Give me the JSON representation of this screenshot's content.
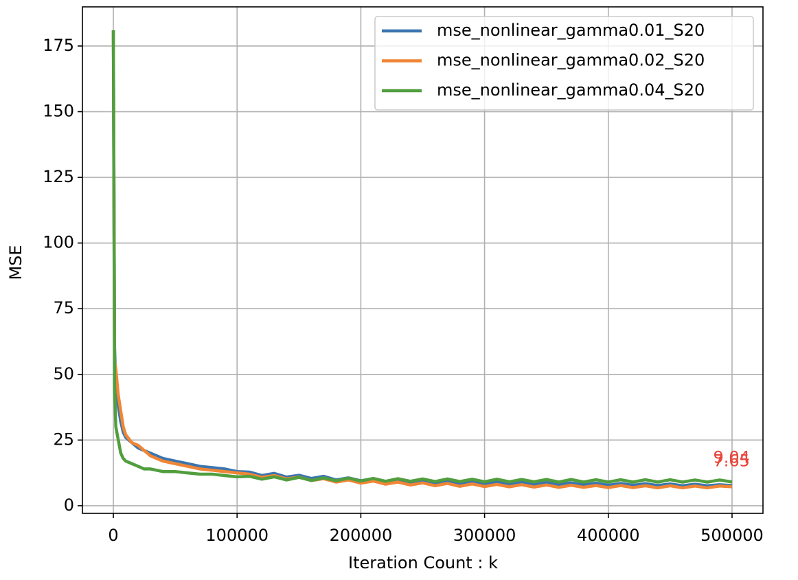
{
  "chart_data": {
    "type": "line",
    "xlabel": "Iteration Count : k",
    "ylabel": "MSE",
    "xlim": [
      -25000,
      525000
    ],
    "ylim": [
      -2.9,
      189.9
    ],
    "xticks": [
      0,
      100000,
      200000,
      300000,
      400000,
      500000
    ],
    "yticks": [
      0,
      25,
      50,
      75,
      100,
      125,
      150,
      175
    ],
    "grid": true,
    "legend": "upper right",
    "x": [
      0,
      1000,
      2000,
      4000,
      6000,
      8000,
      10000,
      15000,
      20000,
      25000,
      30000,
      40000,
      50000,
      60000,
      70000,
      80000,
      90000,
      100000,
      110000,
      120000,
      130000,
      140000,
      150000,
      160000,
      170000,
      180000,
      190000,
      200000,
      210000,
      220000,
      230000,
      240000,
      250000,
      260000,
      270000,
      280000,
      290000,
      300000,
      310000,
      320000,
      330000,
      340000,
      350000,
      360000,
      370000,
      380000,
      390000,
      400000,
      410000,
      420000,
      430000,
      440000,
      450000,
      460000,
      470000,
      480000,
      490000,
      500000
    ],
    "series": [
      {
        "name": "mse_nonlinear_gamma0.01_S20",
        "color": "#3b75af",
        "values": [
          181,
          60,
          45,
          38,
          32,
          28,
          26,
          24,
          22,
          21,
          20,
          18,
          17,
          16,
          15,
          14.5,
          14,
          13,
          12.8,
          11.5,
          12.3,
          10.9,
          11.6,
          10.4,
          11.2,
          9.8,
          10.6,
          9.5,
          10.3,
          9.2,
          9.9,
          8.9,
          9.6,
          8.7,
          9.4,
          8.5,
          9.2,
          8.4,
          9.0,
          8.2,
          8.9,
          8.1,
          8.8,
          8.0,
          8.7,
          7.9,
          8.6,
          7.8,
          8.5,
          7.8,
          8.4,
          7.7,
          8.3,
          7.6,
          8.2,
          7.6,
          8.0,
          7.65
        ]
      },
      {
        "name": "mse_nonlinear_gamma0.02_S20",
        "color": "#ef8636",
        "values": [
          180,
          55,
          52,
          42,
          36,
          30,
          27,
          24,
          23,
          21,
          19,
          17,
          16,
          15,
          14,
          13.5,
          13,
          12.5,
          12.0,
          10.8,
          11.5,
          10.2,
          10.9,
          9.6,
          10.3,
          9.0,
          9.8,
          8.6,
          9.4,
          8.2,
          9.0,
          7.9,
          8.7,
          7.6,
          8.5,
          7.4,
          8.3,
          7.3,
          8.1,
          7.2,
          8.0,
          7.1,
          7.9,
          7.0,
          7.8,
          7.0,
          7.7,
          6.9,
          7.7,
          6.9,
          7.6,
          6.8,
          7.6,
          6.8,
          7.5,
          6.8,
          7.5,
          7.2
        ]
      },
      {
        "name": "mse_nonlinear_gamma0.04_S20",
        "color": "#519e3e",
        "values": [
          181,
          45,
          30,
          25,
          20,
          18,
          17,
          16,
          15,
          14,
          14,
          13,
          13,
          12.5,
          12,
          12,
          11.5,
          11,
          11.2,
          10.1,
          11.0,
          9.8,
          10.8,
          9.6,
          10.6,
          9.5,
          10.5,
          9.4,
          10.4,
          9.3,
          10.3,
          9.3,
          10.2,
          9.2,
          10.2,
          9.2,
          10.1,
          9.1,
          10.1,
          9.1,
          10.0,
          9.1,
          10.0,
          9.0,
          10.0,
          9.0,
          9.9,
          9.0,
          9.9,
          9.0,
          9.9,
          9.0,
          9.9,
          9.0,
          9.8,
          9.0,
          9.8,
          9.04
        ]
      }
    ],
    "annotations": [
      {
        "text": "9.04",
        "series": 2,
        "color": "#e8463a"
      },
      {
        "text": "7.65",
        "series": 0,
        "color": "#e8463a"
      }
    ]
  }
}
